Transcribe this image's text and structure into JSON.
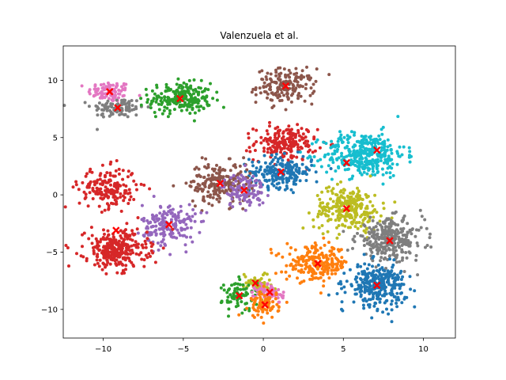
{
  "chart_data": {
    "type": "scatter",
    "title": "Valenzuela et al.",
    "xlabel": "",
    "ylabel": "",
    "xlim": [
      -12.5,
      12.0
    ],
    "ylim": [
      -12.5,
      13.0
    ],
    "xticks": [
      -10,
      -5,
      0,
      5,
      10
    ],
    "yticks": [
      -10,
      -5,
      0,
      5,
      10
    ],
    "grid": false,
    "legend": "none",
    "clusters": [
      {
        "color": "#e377c2",
        "center": [
          -9.6,
          9.0
        ],
        "spread": [
          0.9,
          0.6
        ],
        "n": 90
      },
      {
        "color": "#7f7f7f",
        "center": [
          -9.1,
          7.6
        ],
        "spread": [
          1.1,
          0.6
        ],
        "n": 100
      },
      {
        "color": "#2ca02c",
        "center": [
          -5.2,
          8.4
        ],
        "spread": [
          1.3,
          0.9
        ],
        "n": 220
      },
      {
        "color": "#8c564b",
        "center": [
          1.4,
          9.5
        ],
        "spread": [
          1.2,
          1.0
        ],
        "n": 170
      },
      {
        "color": "#d62728",
        "center": [
          1.4,
          4.5
        ],
        "spread": [
          1.3,
          1.0
        ],
        "n": 200
      },
      {
        "color": "#17becf",
        "center": [
          6.3,
          3.5
        ],
        "spread": [
          1.7,
          1.3
        ],
        "n": 360
      },
      {
        "color": "#1f77b4",
        "center": [
          1.1,
          2.0
        ],
        "spread": [
          1.3,
          0.9
        ],
        "n": 220
      },
      {
        "color": "#d62728",
        "center": [
          -9.7,
          0.6
        ],
        "spread": [
          1.2,
          1.2
        ],
        "n": 180
      },
      {
        "color": "#8c564b",
        "center": [
          -2.7,
          1.0
        ],
        "spread": [
          1.3,
          1.2
        ],
        "n": 210
      },
      {
        "color": "#9467bd",
        "center": [
          -1.2,
          0.4
        ],
        "spread": [
          0.9,
          1.0
        ],
        "n": 110
      },
      {
        "color": "#9467bd",
        "center": [
          -5.9,
          -2.6
        ],
        "spread": [
          1.1,
          1.2
        ],
        "n": 180
      },
      {
        "color": "#bcbd22",
        "center": [
          5.3,
          -1.2
        ],
        "spread": [
          1.4,
          1.3
        ],
        "n": 260
      },
      {
        "color": "#d62728",
        "center": [
          -9.2,
          -4.8
        ],
        "spread": [
          1.3,
          1.1
        ],
        "n": 300
      },
      {
        "color": "#7f7f7f",
        "center": [
          7.9,
          -3.9
        ],
        "spread": [
          1.4,
          1.2
        ],
        "n": 300
      },
      {
        "color": "#ff7f0e",
        "center": [
          3.4,
          -6.0
        ],
        "spread": [
          1.3,
          1.0
        ],
        "n": 230
      },
      {
        "color": "#1f77b4",
        "center": [
          7.1,
          -7.9
        ],
        "spread": [
          1.2,
          1.2
        ],
        "n": 300
      },
      {
        "color": "#bcbd22",
        "center": [
          -0.4,
          -7.7
        ],
        "spread": [
          0.6,
          0.6
        ],
        "n": 60
      },
      {
        "color": "#2ca02c",
        "center": [
          -1.5,
          -8.8
        ],
        "spread": [
          0.7,
          0.9
        ],
        "n": 80
      },
      {
        "color": "#e377c2",
        "center": [
          0.4,
          -8.6
        ],
        "spread": [
          0.6,
          0.6
        ],
        "n": 70
      },
      {
        "color": "#ff7f0e",
        "center": [
          0.1,
          -9.6
        ],
        "spread": [
          0.6,
          0.8
        ],
        "n": 80
      }
    ],
    "centroid_color": "#ff0000",
    "centroids": [
      [
        -9.6,
        9.0
      ],
      [
        -9.1,
        7.6
      ],
      [
        -5.2,
        8.4
      ],
      [
        1.4,
        9.5
      ],
      [
        1.1,
        2.0
      ],
      [
        7.1,
        3.9
      ],
      [
        5.2,
        2.8
      ],
      [
        -2.7,
        1.0
      ],
      [
        -1.2,
        0.4
      ],
      [
        -5.9,
        -2.6
      ],
      [
        5.2,
        -1.2
      ],
      [
        7.9,
        -4.0
      ],
      [
        3.4,
        -6.0
      ],
      [
        7.1,
        -7.9
      ],
      [
        -0.5,
        -7.7
      ],
      [
        -1.5,
        -8.8
      ],
      [
        0.4,
        -8.5
      ],
      [
        0.1,
        -9.6
      ],
      [
        -9.2,
        -3.1
      ]
    ]
  }
}
